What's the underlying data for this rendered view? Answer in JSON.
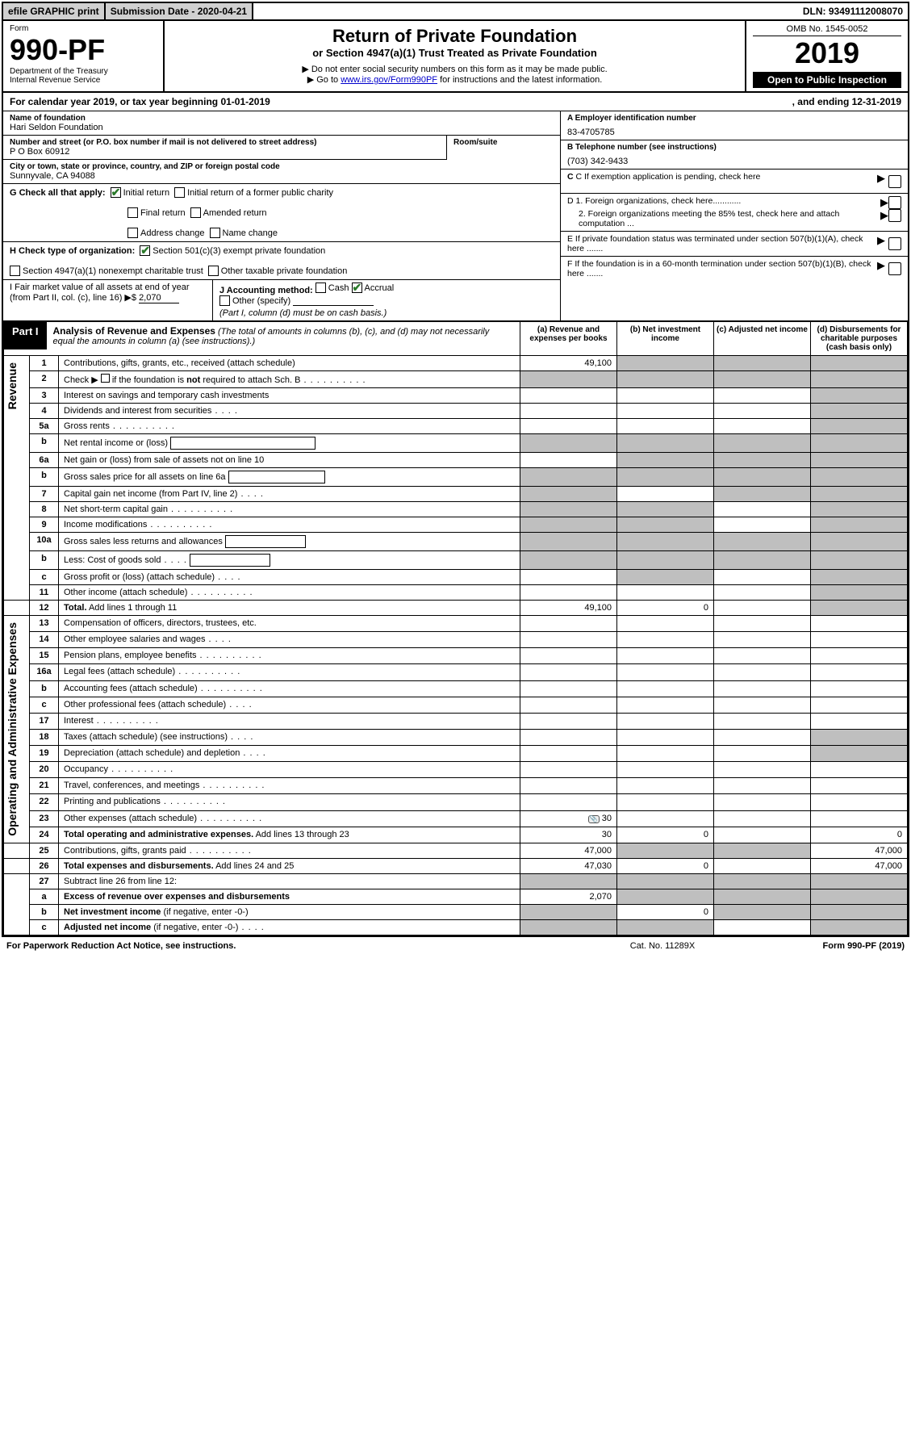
{
  "topbar": {
    "efile": "efile GRAPHIC print",
    "subdate_label": "Submission Date - 2020-04-21",
    "dln": "DLN: 93491112008070"
  },
  "header": {
    "form_word": "Form",
    "form_no": "990-PF",
    "dept": "Department of the Treasury",
    "irs": "Internal Revenue Service",
    "title": "Return of Private Foundation",
    "subtitle": "or Section 4947(a)(1) Trust Treated as Private Foundation",
    "instr1": "▶ Do not enter social security numbers on this form as it may be made public.",
    "instr2_pre": "▶ Go to ",
    "instr2_link": "www.irs.gov/Form990PF",
    "instr2_post": " for instructions and the latest information.",
    "omb": "OMB No. 1545-0052",
    "year": "2019",
    "open": "Open to Public Inspection"
  },
  "cal": {
    "left": "For calendar year 2019, or tax year beginning 01-01-2019",
    "right": ", and ending 12-31-2019"
  },
  "name": {
    "lbl": "Name of foundation",
    "val": "Hari Seldon Foundation"
  },
  "addr": {
    "lbl": "Number and street (or P.O. box number if mail is not delivered to street address)",
    "val": "P O Box 60912",
    "room_lbl": "Room/suite"
  },
  "city": {
    "lbl": "City or town, state or province, country, and ZIP or foreign postal code",
    "val": "Sunnyvale, CA  94088"
  },
  "right": {
    "a_lbl": "A Employer identification number",
    "a_val": "83-4705785",
    "b_lbl": "B Telephone number (see instructions)",
    "b_val": "(703) 342-9433",
    "c_lbl": "C If exemption application is pending, check here",
    "d1": "D 1. Foreign organizations, check here............",
    "d2": "2. Foreign organizations meeting the 85% test, check here and attach computation ...",
    "e": "E  If private foundation status was terminated under section 507(b)(1)(A), check here .......",
    "f": "F  If the foundation is in a 60-month termination under section 507(b)(1)(B), check here ......."
  },
  "g": {
    "lbl": "G Check all that apply:",
    "initial": "Initial return",
    "initial_former": "Initial return of a former public charity",
    "final": "Final return",
    "amended": "Amended return",
    "addr_chg": "Address change",
    "name_chg": "Name change"
  },
  "h": {
    "lbl": "H Check type of organization:",
    "s501": "Section 501(c)(3) exempt private foundation",
    "s4947": "Section 4947(a)(1) nonexempt charitable trust",
    "other_tax": "Other taxable private foundation"
  },
  "i": {
    "lbl": "I Fair market value of all assets at end of year (from Part II, col. (c), line 16) ▶$",
    "val": "2,070"
  },
  "j": {
    "lbl": "J Accounting method:",
    "cash": "Cash",
    "accrual": "Accrual",
    "other": "Other (specify)",
    "note": "(Part I, column (d) must be on cash basis.)"
  },
  "part1": {
    "tab": "Part I",
    "title": "Analysis of Revenue and Expenses",
    "note": "(The total of amounts in columns (b), (c), and (d) may not necessarily equal the amounts in column (a) (see instructions).)",
    "col_a": "(a)   Revenue and expenses per books",
    "col_b": "(b)  Net investment income",
    "col_c": "(c)  Adjusted net income",
    "col_d": "(d)  Disbursements for charitable purposes (cash basis only)"
  },
  "side": {
    "rev": "Revenue",
    "exp": "Operating and Administrative Expenses"
  },
  "rows": {
    "r1": {
      "n": "1",
      "d": "Contributions, gifts, grants, etc., received (attach schedule)"
    },
    "r2": {
      "n": "2",
      "d_pre": "Check ▶ ",
      "d_post": " if the foundation is <b>not</b> required to attach Sch. B"
    },
    "r3": {
      "n": "3",
      "d": "Interest on savings and temporary cash investments"
    },
    "r4": {
      "n": "4",
      "d": "Dividends and interest from securities"
    },
    "r5a": {
      "n": "5a",
      "d": "Gross rents"
    },
    "r5b": {
      "n": "b",
      "d": "Net rental income or (loss)"
    },
    "r6a": {
      "n": "6a",
      "d": "Net gain or (loss) from sale of assets not on line 10"
    },
    "r6b": {
      "n": "b",
      "d": "Gross sales price for all assets on line 6a"
    },
    "r7": {
      "n": "7",
      "d": "Capital gain net income (from Part IV, line 2)"
    },
    "r8": {
      "n": "8",
      "d": "Net short-term capital gain"
    },
    "r9": {
      "n": "9",
      "d": "Income modifications"
    },
    "r10a": {
      "n": "10a",
      "d": "Gross sales less returns and allowances"
    },
    "r10b": {
      "n": "b",
      "d": "Less: Cost of goods sold"
    },
    "r10c": {
      "n": "c",
      "d": "Gross profit or (loss) (attach schedule)"
    },
    "r11": {
      "n": "11",
      "d": "Other income (attach schedule)"
    },
    "r12": {
      "n": "12",
      "d": "<b>Total.</b> Add lines 1 through 11"
    },
    "r13": {
      "n": "13",
      "d": "Compensation of officers, directors, trustees, etc."
    },
    "r14": {
      "n": "14",
      "d": "Other employee salaries and wages"
    },
    "r15": {
      "n": "15",
      "d": "Pension plans, employee benefits"
    },
    "r16a": {
      "n": "16a",
      "d": "Legal fees (attach schedule)"
    },
    "r16b": {
      "n": "b",
      "d": "Accounting fees (attach schedule)"
    },
    "r16c": {
      "n": "c",
      "d": "Other professional fees (attach schedule)"
    },
    "r17": {
      "n": "17",
      "d": "Interest"
    },
    "r18": {
      "n": "18",
      "d": "Taxes (attach schedule) (see instructions)"
    },
    "r19": {
      "n": "19",
      "d": "Depreciation (attach schedule) and depletion"
    },
    "r20": {
      "n": "20",
      "d": "Occupancy"
    },
    "r21": {
      "n": "21",
      "d": "Travel, conferences, and meetings"
    },
    "r22": {
      "n": "22",
      "d": "Printing and publications"
    },
    "r23": {
      "n": "23",
      "d": "Other expenses (attach schedule)"
    },
    "r24": {
      "n": "24",
      "d": "<b>Total operating and administrative expenses.</b> Add lines 13 through 23"
    },
    "r25": {
      "n": "25",
      "d": "Contributions, gifts, grants paid"
    },
    "r26": {
      "n": "26",
      "d": "<b>Total expenses and disbursements.</b> Add lines 24 and 25"
    },
    "r27": {
      "n": "27",
      "d": "Subtract line 26 from line 12:"
    },
    "r27a": {
      "n": "a",
      "d": "<b>Excess of revenue over expenses and disbursements</b>"
    },
    "r27b": {
      "n": "b",
      "d": "<b>Net investment income</b> (if negative, enter -0-)"
    },
    "r27c": {
      "n": "c",
      "d": "<b>Adjusted net income</b> (if negative, enter -0-)"
    }
  },
  "vals": {
    "r1a": "49,100",
    "r12a": "49,100",
    "r12b": "0",
    "r23a": "30",
    "r24a": "30",
    "r24b": "0",
    "r24d": "0",
    "r25a": "47,000",
    "r25d": "47,000",
    "r26a": "47,030",
    "r26b": "0",
    "r26d": "47,000",
    "r27aa": "2,070",
    "r27bb": "0"
  },
  "footer": {
    "left": "For Paperwork Reduction Act Notice, see instructions.",
    "mid": "Cat. No. 11289X",
    "right": "Form 990-PF (2019)"
  }
}
